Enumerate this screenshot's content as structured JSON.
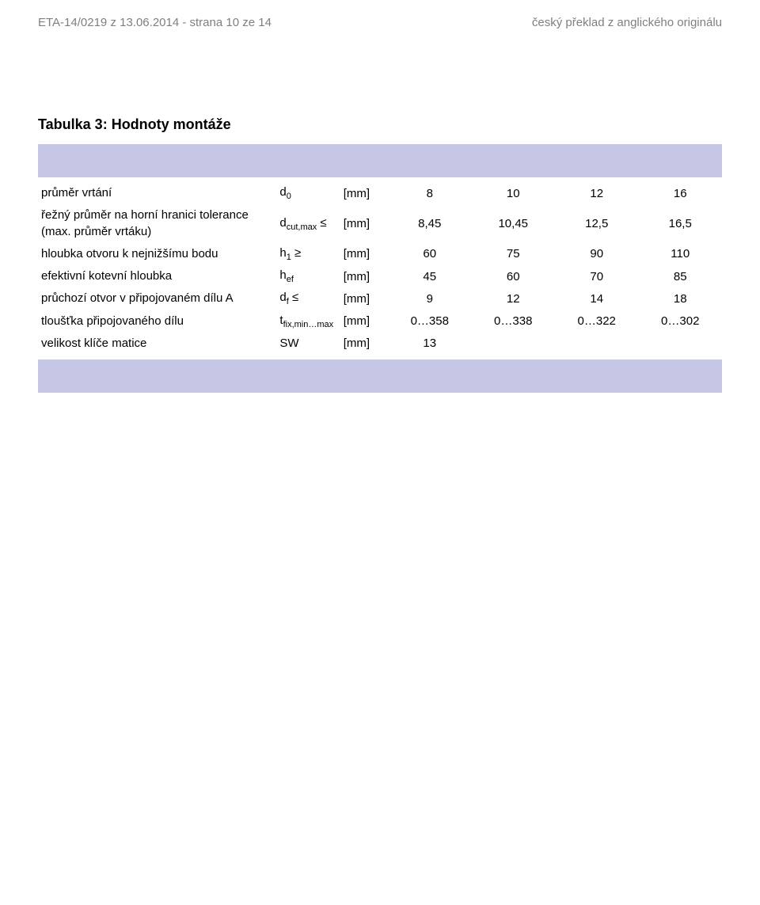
{
  "colors": {
    "header_text": "#7f7f7f",
    "body_text": "#000000",
    "band_bg": "#c6c7e4",
    "page_bg": "#ffffff"
  },
  "header": {
    "left": "ETA-14/0219 z 13.06.2014 - strana 10 ze 14",
    "right": "český překlad z anglického originálu"
  },
  "table_title": "Tabulka 3: Hodnoty montáže",
  "unit_label": "[mm]",
  "column_widths": {
    "label": 300,
    "symbol": 80,
    "unit": 60,
    "value": 105
  },
  "rows": [
    {
      "label": "průměr vrtání",
      "symbol_html": "d<span class=\"sub\">0</span>",
      "values": [
        "8",
        "10",
        "12",
        "16"
      ]
    },
    {
      "label": "řežný průměr na horní hranici tolerance (max. průměr vrtáku)",
      "symbol_html": "d<span class=\"sub\">cut,max</span> ≤",
      "values": [
        "8,45",
        "10,45",
        "12,5",
        "16,5"
      ]
    },
    {
      "label": "hloubka otvoru k nejnižšímu bodu",
      "symbol_html": "h<span class=\"sub\">1</span> ≥",
      "values": [
        "60",
        "75",
        "90",
        "110"
      ]
    },
    {
      "label": "efektivní kotevní hloubka",
      "symbol_html": "h<span class=\"sub\">ef</span>",
      "values": [
        "45",
        "60",
        "70",
        "85"
      ]
    },
    {
      "label": "průchozí otvor v připojovaném dílu A",
      "symbol_html": "d<span class=\"sub\">f</span> ≤",
      "values": [
        "9",
        "12",
        "14",
        "18"
      ]
    },
    {
      "label": "tloušťka připojovaného dílu",
      "symbol_html": "t<span class=\"sub\">fix,min…max</span>",
      "values": [
        "0…358",
        "0…338",
        "0…322",
        "0…302"
      ]
    },
    {
      "label": "velikost klíče matice",
      "symbol_html": "SW",
      "values": [
        "13",
        "",
        "",
        ""
      ]
    }
  ]
}
